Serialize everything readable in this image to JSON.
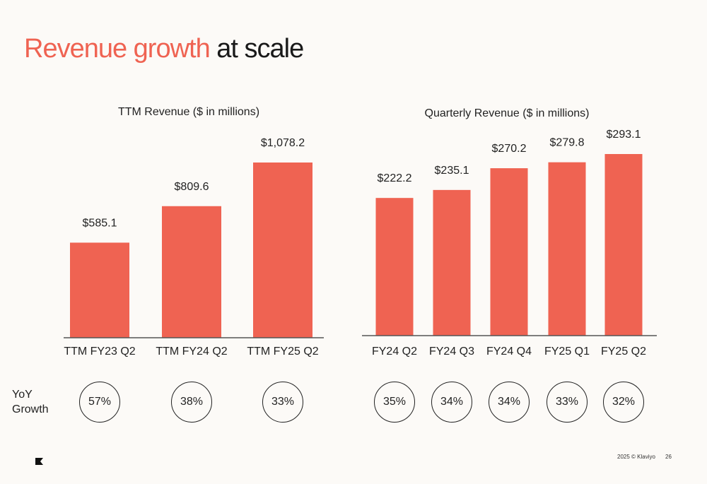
{
  "headline": {
    "accent": "Revenue growth",
    "rest": " at scale"
  },
  "yoy_label": "YoY Growth",
  "footer": {
    "copyright": "2025 © Klaviyo",
    "page": "26"
  },
  "colors": {
    "bar": "#ef6352",
    "accent": "#ef6352",
    "text": "#222222"
  },
  "logo_icon": "klaviyo-flag-icon",
  "chart_data": [
    {
      "type": "bar",
      "title": "TTM Revenue ($ in millions)",
      "categories": [
        "TTM FY23 Q2",
        "TTM FY24 Q2",
        "TTM FY25 Q2"
      ],
      "values": [
        585.1,
        809.6,
        1078.2
      ],
      "value_labels": [
        "$585.1",
        "$809.6",
        "$1,078.2"
      ],
      "yoy_growth": [
        "57%",
        "38%",
        "33%"
      ],
      "ylim": [
        0,
        1078.2
      ]
    },
    {
      "type": "bar",
      "title": "Quarterly Revenue ($ in millions)",
      "categories": [
        "FY24 Q2",
        "FY24 Q3",
        "FY24 Q4",
        "FY25 Q1",
        "FY25 Q2"
      ],
      "values": [
        222.2,
        235.1,
        270.2,
        279.8,
        293.1
      ],
      "value_labels": [
        "$222.2",
        "$235.1",
        "$270.2",
        "$279.8",
        "$293.1"
      ],
      "yoy_growth": [
        "35%",
        "34%",
        "34%",
        "33%",
        "32%"
      ],
      "ylim": [
        0,
        293.1
      ]
    }
  ]
}
